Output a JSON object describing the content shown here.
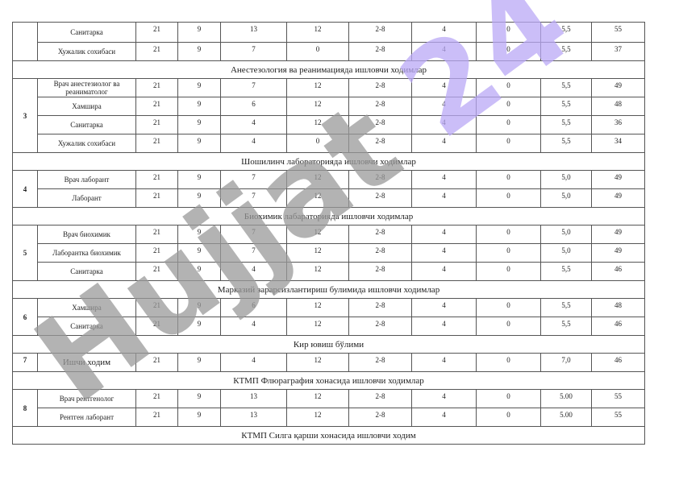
{
  "watermark": {
    "part1": "Hujjat",
    "part2": "24",
    "color1": "#9a9a9a",
    "color2": "#b9a8f5"
  },
  "rows": [
    {
      "type": "row",
      "idx": "",
      "name": "Санитарка",
      "vals": [
        "21",
        "9",
        "13",
        "12",
        "2-8",
        "4",
        "0",
        "5,5",
        "55"
      ]
    },
    {
      "type": "row",
      "idx": "",
      "name": "Хужалик сохибаси",
      "vals": [
        "21",
        "9",
        "7",
        "0",
        "2-8",
        "4",
        "0",
        "5,5",
        "37"
      ]
    },
    {
      "type": "section",
      "title": "Анестезология ва реанимацияда ишловчи ходимлар"
    },
    {
      "type": "row",
      "idx": "3",
      "span": 4,
      "name": "Врач анестезиолог ва реаниматолог",
      "vals": [
        "21",
        "9",
        "7",
        "12",
        "2-8",
        "4",
        "0",
        "5,5",
        "49"
      ]
    },
    {
      "type": "row",
      "name": "Хамшира",
      "vals": [
        "21",
        "9",
        "6",
        "12",
        "2-8",
        "4",
        "0",
        "5,5",
        "48"
      ]
    },
    {
      "type": "row",
      "name": "Санитарка",
      "vals": [
        "21",
        "9",
        "4",
        "12",
        "2-8",
        "4",
        "0",
        "5,5",
        "36"
      ]
    },
    {
      "type": "row",
      "name": "Хужалик сохибаси",
      "vals": [
        "21",
        "9",
        "4",
        "0",
        "2-8",
        "4",
        "0",
        "5,5",
        "34"
      ]
    },
    {
      "type": "section",
      "title": "Шошилинч лабораторияда ишловчи ходимлар"
    },
    {
      "type": "row",
      "idx": "4",
      "span": 2,
      "name": "Врач лаборант",
      "vals": [
        "21",
        "9",
        "7",
        "12",
        "2-8",
        "4",
        "0",
        "5,0",
        "49"
      ]
    },
    {
      "type": "row",
      "name": "Лаборант",
      "vals": [
        "21",
        "9",
        "7",
        "12",
        "2-8",
        "4",
        "0",
        "5,0",
        "49"
      ]
    },
    {
      "type": "section",
      "title": "Биохимик лабараторияда ишловчи ходимлар"
    },
    {
      "type": "row",
      "idx": "5",
      "span": 3,
      "name": "Врач биохимик",
      "vals": [
        "21",
        "9",
        "7",
        "12",
        "2-8",
        "4",
        "0",
        "5,0",
        "49"
      ]
    },
    {
      "type": "row",
      "name": "Лаборантка биохимик",
      "vals": [
        "21",
        "9",
        "7",
        "12",
        "2-8",
        "4",
        "0",
        "5,0",
        "49"
      ]
    },
    {
      "type": "row",
      "name": "Санитарка",
      "vals": [
        "21",
        "9",
        "4",
        "12",
        "2-8",
        "4",
        "0",
        "5,5",
        "46"
      ]
    },
    {
      "type": "section",
      "title": "Марказий зарарсизлантириш булимида ишловчи ходимлар"
    },
    {
      "type": "row",
      "idx": "6",
      "span": 2,
      "name": "Хамшира",
      "vals": [
        "21",
        "9",
        "6",
        "12",
        "2-8",
        "4",
        "0",
        "5,5",
        "48"
      ]
    },
    {
      "type": "row",
      "name": "Санитарка",
      "vals": [
        "21",
        "9",
        "4",
        "12",
        "2-8",
        "4",
        "0",
        "5,5",
        "46"
      ]
    },
    {
      "type": "section",
      "title": "Кир ювиш бўлими"
    },
    {
      "type": "row",
      "idx": "7",
      "span": 1,
      "big": true,
      "name": "Ишчи ходим",
      "vals": [
        "21",
        "9",
        "4",
        "12",
        "2-8",
        "4",
        "0",
        "7,0",
        "46"
      ]
    },
    {
      "type": "section",
      "title": "КТМП Флюраграфия хонасида  ишловчи  ходимлар"
    },
    {
      "type": "row",
      "idx": "8",
      "span": 2,
      "name": "Врач рентгенолог",
      "vals": [
        "21",
        "9",
        "13",
        "12",
        "2-8",
        "4",
        "0",
        "5.00",
        "55"
      ]
    },
    {
      "type": "row",
      "name": "Рентген лаборант",
      "vals": [
        "21",
        "9",
        "13",
        "12",
        "2-8",
        "4",
        "0",
        "5.00",
        "55"
      ]
    },
    {
      "type": "section",
      "title": "КТМП Силга қарши хонасида ишловчи ходим"
    }
  ]
}
